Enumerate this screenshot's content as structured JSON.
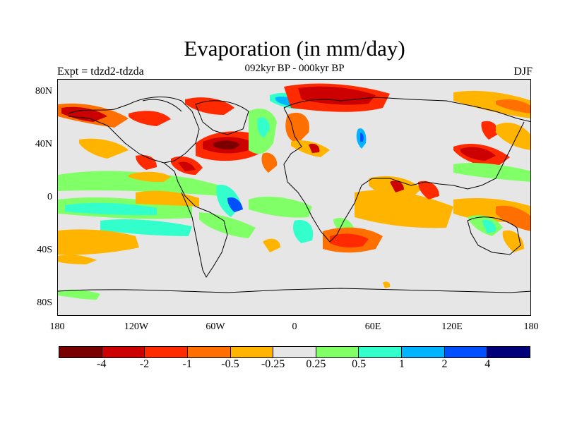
{
  "map": {
    "title": "Evaporation (in mm/day)",
    "subtitle": "092kyr BP - 000kyr BP",
    "left_label": "Expt = tdzd2-tdzda",
    "right_label": "DJF",
    "lat_ticks": [
      "80N",
      "40N",
      "0",
      "40S",
      "80S"
    ],
    "lon_ticks": [
      "180",
      "120W",
      "60W",
      "0",
      "60E",
      "120E",
      "180"
    ],
    "background_color": "#e6e6e6",
    "colorbar": {
      "colors": [
        "#7a0000",
        "#cc0000",
        "#ff2a00",
        "#ff7000",
        "#ffb400",
        "#e6e6e6",
        "#80ff66",
        "#33ffcc",
        "#00b4ff",
        "#0050ff",
        "#00007a"
      ],
      "labels": [
        "-4",
        "-2",
        "-1",
        "-0.5",
        "-0.25",
        "0.25",
        "0.5",
        "1",
        "2",
        "4"
      ]
    }
  }
}
